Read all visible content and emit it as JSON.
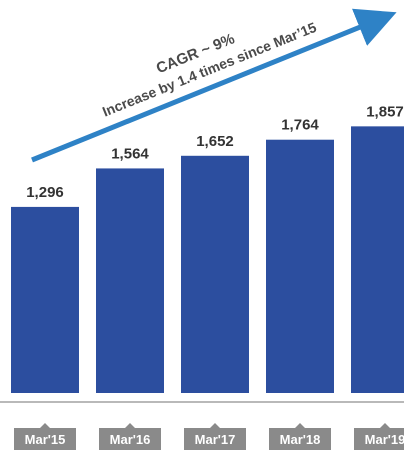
{
  "chart_data": {
    "type": "bar",
    "categories": [
      "Mar'15",
      "Mar'16",
      "Mar'17",
      "Mar'18",
      "Mar'19"
    ],
    "values": [
      1296,
      1564,
      1652,
      1764,
      1857
    ],
    "value_labels": [
      "1,296",
      "1,564",
      "1,652",
      "1,764",
      "1,857"
    ],
    "ylim": [
      0,
      1950
    ],
    "grid": false,
    "legend": "none",
    "annotations": [
      "CAGR ~ 9%",
      "Increase by 1.4 times since Mar’15"
    ],
    "colors": {
      "bar": "#2C4E9F",
      "arrow": "#2E82C6",
      "label_box": "#8A8A8A",
      "axis": "#8F8F8F"
    }
  }
}
